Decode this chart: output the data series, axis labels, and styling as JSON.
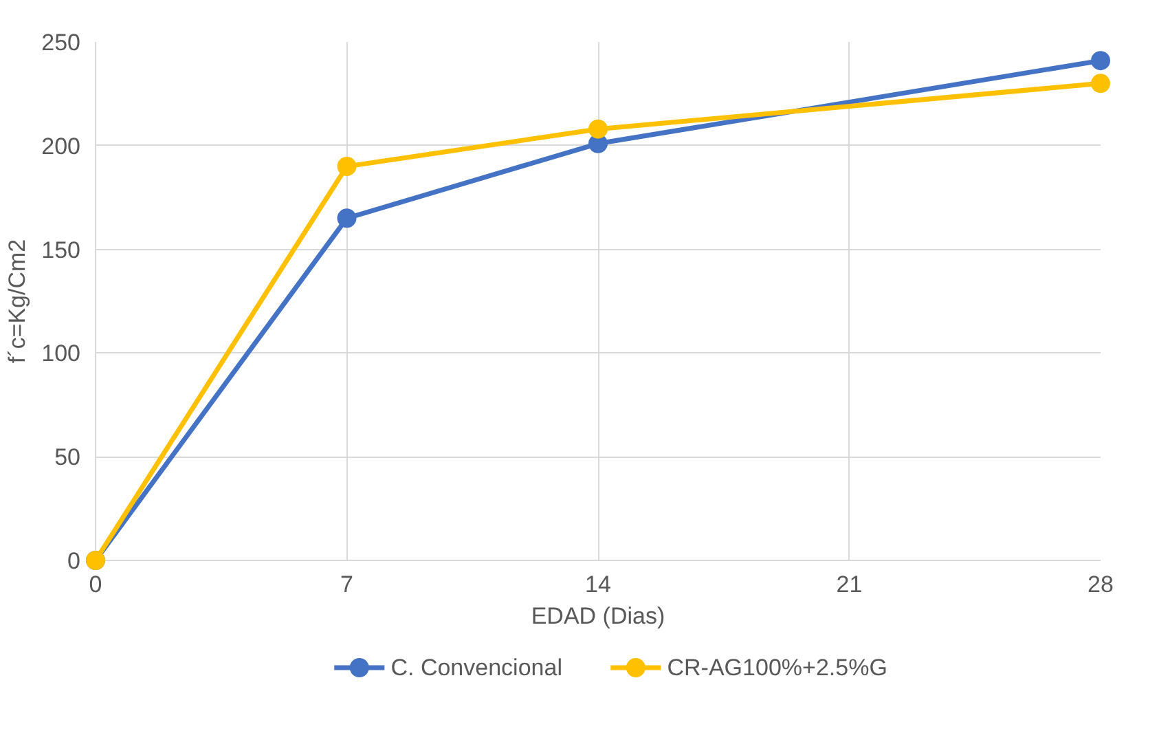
{
  "chart_data": {
    "type": "line",
    "xlabel": "EDAD (Dias)",
    "ylabel": "f´c=Kg/Cm2",
    "x": [
      0,
      7,
      14,
      28
    ],
    "series": [
      {
        "name": "C. Convencional",
        "color": "#4472c4",
        "values": [
          0,
          165,
          201,
          241
        ]
      },
      {
        "name": "CR-AG100%+2.5%G",
        "color": "#ffc000",
        "values": [
          0,
          190,
          208,
          230
        ]
      }
    ],
    "xlim": [
      0,
      28
    ],
    "xticks": [
      0,
      7,
      14,
      21,
      28
    ],
    "ylim": [
      0,
      250
    ],
    "yticks": [
      0,
      50,
      100,
      150,
      200,
      250
    ],
    "grid": true,
    "legend": "bottom",
    "marker": "circle",
    "line_style": "solid"
  }
}
